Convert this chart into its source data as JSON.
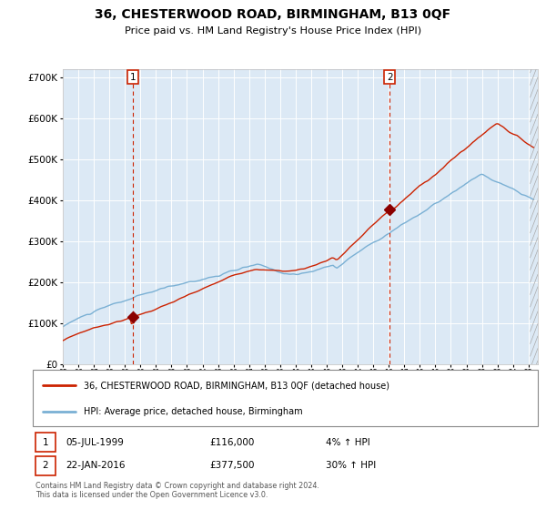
{
  "title": "36, CHESTERWOOD ROAD, BIRMINGHAM, B13 0QF",
  "subtitle": "Price paid vs. HM Land Registry's House Price Index (HPI)",
  "bg_color": "#dce9f5",
  "red_line_color": "#cc2200",
  "blue_line_color": "#7ab0d4",
  "marker_color": "#8b0000",
  "dashed_line_color": "#cc2200",
  "yticks": [
    0,
    100000,
    200000,
    300000,
    400000,
    500000,
    600000,
    700000
  ],
  "legend_red_label": "36, CHESTERWOOD ROAD, BIRMINGHAM, B13 0QF (detached house)",
  "legend_blue_label": "HPI: Average price, detached house, Birmingham",
  "footer": "Contains HM Land Registry data © Crown copyright and database right 2024.\nThis data is licensed under the Open Government Licence v3.0.",
  "sale1_date_num": 1999.51,
  "sale1_value": 116000,
  "sale2_date_num": 2016.06,
  "sale2_value": 377500,
  "annotation1_date": "05-JUL-1999",
  "annotation1_price": "£116,000",
  "annotation1_hpi": "4% ↑ HPI",
  "annotation2_date": "22-JAN-2016",
  "annotation2_price": "£377,500",
  "annotation2_hpi": "30% ↑ HPI"
}
